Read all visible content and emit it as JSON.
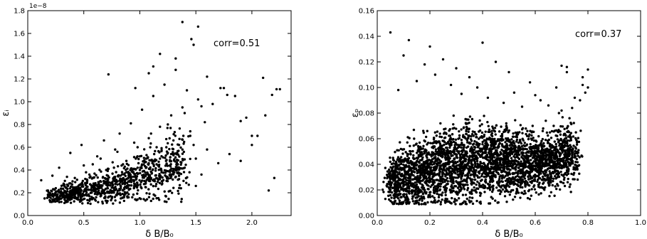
{
  "chart_data": [
    {
      "type": "scatter",
      "xlabel": "δ B/B₀",
      "ylabel": "εᵢ",
      "y_offset_label": "1e−8",
      "annotation": "corr=0.51",
      "xlim": [
        0.0,
        2.35
      ],
      "ylim": [
        0.0,
        1.8e-08
      ],
      "x_ticks": [
        0.0,
        0.5,
        1.0,
        1.5,
        2.0
      ],
      "x_tick_labels": [
        "0.0",
        "0.5",
        "1.0",
        "1.5",
        "2.0"
      ],
      "y_ticks": [
        0.0,
        2e-09,
        4e-09,
        6e-09,
        8e-09,
        1e-08,
        1.2e-08,
        1.4e-08,
        1.6e-08,
        1.8e-08
      ],
      "y_tick_labels": [
        "0.0",
        "0.2",
        "0.4",
        "0.6",
        "0.8",
        "1.0",
        "1.2",
        "1.4",
        "1.6",
        "1.8"
      ],
      "grid": false,
      "marker_color": "#000000",
      "points": {
        "x": [
          0.12,
          0.15,
          0.18,
          0.2,
          0.22,
          0.25,
          0.28,
          0.3,
          0.32,
          0.35,
          0.38,
          0.4,
          0.42,
          0.45,
          0.48,
          0.5,
          0.52,
          0.55,
          0.58,
          0.6,
          0.62,
          0.65,
          0.68,
          0.7,
          0.72,
          0.75,
          0.78,
          0.8,
          0.82,
          0.85,
          0.88,
          0.9,
          0.92,
          0.95,
          0.98,
          1.0,
          1.02,
          1.05,
          1.08,
          1.1,
          1.12,
          1.15,
          1.18,
          1.2,
          1.22,
          1.25,
          1.28,
          1.3,
          1.32,
          1.35,
          1.38,
          1.4,
          1.42,
          1.45,
          1.48,
          1.5,
          1.52,
          1.55,
          1.58,
          1.6,
          1.65,
          1.7,
          1.75,
          1.8,
          1.85,
          1.9,
          1.95,
          2.0,
          2.05,
          2.1,
          2.15,
          2.2,
          2.25,
          0.3,
          0.45,
          0.6,
          0.75,
          0.9,
          1.05,
          1.2,
          1.35,
          1.5,
          0.25,
          0.4,
          0.55,
          0.7,
          0.85,
          1.0,
          1.15,
          1.3,
          1.45,
          0.35,
          0.5,
          0.65,
          0.8,
          0.95,
          1.1,
          1.25,
          1.4,
          1.55,
          0.2,
          0.38,
          0.58,
          0.78,
          0.98,
          1.18,
          1.38,
          0.28,
          0.48,
          0.68,
          0.88,
          1.08,
          1.28,
          1.48,
          0.72,
          1.12,
          1.32,
          1.46,
          1.52,
          1.38,
          1.18,
          1.08,
          0.96,
          1.6,
          1.72,
          1.78,
          1.9,
          2.0,
          2.12,
          2.18,
          2.22
        ],
        "y": [
          3.1e-09,
          1.5e-09,
          2.2e-09,
          1.3e-09,
          3.5e-09,
          1.8e-09,
          4.2e-09,
          2e-09,
          2.8e-09,
          1.6e-09,
          5.5e-09,
          2.5e-09,
          3.3e-09,
          1.4e-09,
          6.2e-09,
          2.1e-09,
          3.8e-09,
          1.7e-09,
          4.5e-09,
          2.4e-09,
          5.2e-09,
          1.9e-09,
          6.6e-09,
          2.7e-09,
          4.1e-09,
          1.5e-09,
          5.8e-09,
          3e-09,
          7.2e-09,
          2.2e-09,
          4.8e-09,
          3.5e-09,
          8.1e-09,
          2.6e-09,
          6e-09,
          4e-09,
          9.3e-09,
          2.8e-09,
          6.8e-09,
          3.3e-09,
          1.05e-08,
          4.5e-09,
          7.8e-09,
          3e-09,
          1.15e-08,
          5.5e-09,
          8.8e-09,
          3.8e-09,
          1.28e-08,
          6.2e-09,
          9.5e-09,
          4.2e-09,
          1.1e-08,
          7e-09,
          1.5e-08,
          5e-09,
          1.02e-08,
          3.6e-09,
          8.2e-09,
          5.8e-09,
          9.8e-09,
          4.6e-09,
          1.12e-08,
          5.4e-09,
          1.05e-08,
          4.8e-09,
          8.6e-09,
          6.2e-09,
          7e-09,
          1.21e-08,
          2.2e-09,
          3.3e-09,
          1.11e-08,
          1.2e-09,
          1.8e-09,
          1.4e-09,
          2e-09,
          1.6e-09,
          2.5e-09,
          2.8e-09,
          3.2e-09,
          2.6e-09,
          2.4e-09,
          3e-09,
          3.6e-09,
          4e-09,
          4.5e-09,
          5.2e-09,
          6e-09,
          6.6e-09,
          7.4e-09,
          3.4e-09,
          4.4e-09,
          5e-09,
          5.6e-09,
          6.4e-09,
          7.2e-09,
          8e-09,
          9e-09,
          9.6e-09,
          1.2e-09,
          2e-09,
          2.6e-09,
          3.4e-09,
          4.2e-09,
          5e-09,
          5.8e-09,
          1.4e-09,
          2.2e-09,
          3e-09,
          3.8e-09,
          4.6e-09,
          5.4e-09,
          6.2e-09,
          1.24e-08,
          1.31e-08,
          1.38e-08,
          1.55e-08,
          1.66e-08,
          1.7e-08,
          1.42e-08,
          1.25e-08,
          1.12e-08,
          1.22e-08,
          1.12e-08,
          1.06e-08,
          8.3e-09,
          7e-09,
          8.8e-09,
          1.06e-08,
          1.11e-08
        ]
      },
      "dense_region": {
        "x_center": [
          0.2,
          0.4,
          0.6,
          0.8,
          1.0,
          1.2,
          1.4
        ],
        "y_center": [
          1.7e-09,
          2e-09,
          2.4e-09,
          2.8e-09,
          3.4e-09,
          4e-09,
          4.8e-09
        ],
        "y_spread": [
          1e-09,
          1.5e-09,
          2e-09,
          2.6e-09,
          3.4e-09,
          4.2e-09,
          5e-09
        ]
      }
    },
    {
      "type": "scatter",
      "xlabel": "δ B/B₀",
      "ylabel": "εₚ",
      "annotation": "corr=0.37",
      "xlim": [
        0.0,
        1.0
      ],
      "ylim": [
        0.0,
        0.16
      ],
      "x_ticks": [
        0.0,
        0.2,
        0.4,
        0.6,
        0.8,
        1.0
      ],
      "x_tick_labels": [
        "0.0",
        "0.2",
        "0.4",
        "0.6",
        "0.8",
        "1.0"
      ],
      "y_ticks": [
        0.0,
        0.02,
        0.04,
        0.06,
        0.08,
        0.1,
        0.12,
        0.14,
        0.16
      ],
      "y_tick_labels": [
        "0.00",
        "0.02",
        "0.04",
        "0.06",
        "0.08",
        "0.10",
        "0.12",
        "0.14",
        "0.16"
      ],
      "grid": false,
      "marker_color": "#000000",
      "points": {
        "x": [
          0.05,
          0.08,
          0.1,
          0.12,
          0.15,
          0.18,
          0.2,
          0.22,
          0.25,
          0.28,
          0.3,
          0.32,
          0.35,
          0.38,
          0.4,
          0.42,
          0.45,
          0.48,
          0.5,
          0.52,
          0.55,
          0.58,
          0.6,
          0.62,
          0.65,
          0.68,
          0.7,
          0.72,
          0.75,
          0.78,
          0.8,
          0.06,
          0.09,
          0.14,
          0.19,
          0.24,
          0.29,
          0.34,
          0.39,
          0.44,
          0.49,
          0.54,
          0.59,
          0.64,
          0.69,
          0.74,
          0.79,
          0.11,
          0.16,
          0.21,
          0.26,
          0.31,
          0.36,
          0.41,
          0.46,
          0.51,
          0.56,
          0.61,
          0.66,
          0.71,
          0.76,
          0.05,
          0.07,
          0.13,
          0.17,
          0.23,
          0.27,
          0.33,
          0.37,
          0.43,
          0.47,
          0.53,
          0.57,
          0.63,
          0.67,
          0.73,
          0.77,
          0.8,
          0.78,
          0.72,
          0.7
        ],
        "y": [
          0.143,
          0.098,
          0.125,
          0.137,
          0.105,
          0.118,
          0.132,
          0.11,
          0.122,
          0.102,
          0.115,
          0.095,
          0.108,
          0.1,
          0.135,
          0.092,
          0.12,
          0.088,
          0.112,
          0.096,
          0.085,
          0.104,
          0.094,
          0.09,
          0.086,
          0.1,
          0.082,
          0.116,
          0.092,
          0.108,
          0.114,
          0.045,
          0.052,
          0.06,
          0.066,
          0.072,
          0.078,
          0.075,
          0.07,
          0.068,
          0.072,
          0.065,
          0.07,
          0.074,
          0.08,
          0.084,
          0.096,
          0.01,
          0.012,
          0.015,
          0.016,
          0.018,
          0.02,
          0.022,
          0.024,
          0.025,
          0.026,
          0.028,
          0.03,
          0.032,
          0.036,
          0.02,
          0.03,
          0.035,
          0.04,
          0.044,
          0.05,
          0.055,
          0.058,
          0.06,
          0.062,
          0.064,
          0.066,
          0.068,
          0.07,
          0.076,
          0.09,
          0.1,
          0.102,
          0.112,
          0.117
        ]
      },
      "dense_region": {
        "x_center": [
          0.05,
          0.15,
          0.25,
          0.35,
          0.45,
          0.55,
          0.65,
          0.75
        ],
        "y_center": [
          0.025,
          0.032,
          0.038,
          0.042,
          0.042,
          0.04,
          0.042,
          0.05
        ],
        "y_spread": [
          0.03,
          0.045,
          0.05,
          0.05,
          0.046,
          0.04,
          0.034,
          0.036
        ]
      }
    }
  ]
}
